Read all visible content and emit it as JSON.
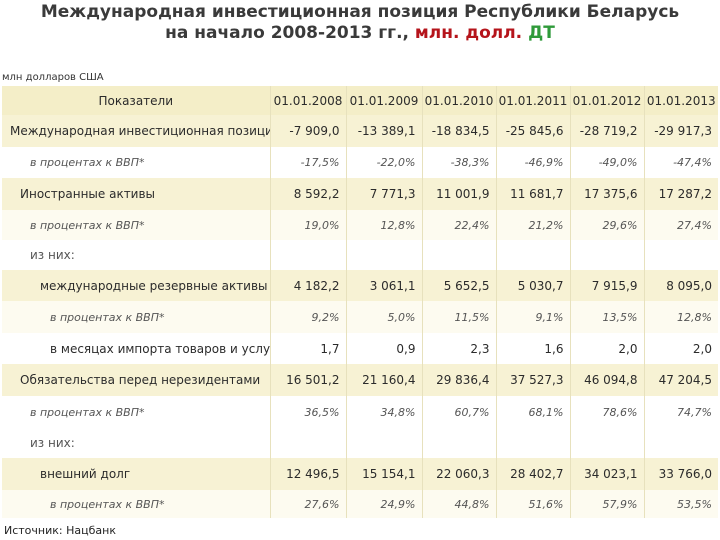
{
  "title": {
    "line1": "Международная инвестиционная позиция Республики Беларусь",
    "line2_main": "на начало 2008-2013 гг.,",
    "line2_units": "млн. долл.",
    "line2_code": "ДТ"
  },
  "units_note": "млн долларов США",
  "table": {
    "header": {
      "indicator": "Показатели",
      "dates": [
        "01.01.2008",
        "01.01.2009",
        "01.01.2010",
        "01.01.2011",
        "01.01.2012",
        "01.01.2013"
      ]
    },
    "rows": [
      {
        "label": "Международная инвестиционная позиция",
        "values": [
          "-7 909,0",
          "-13 389,1",
          "-18 834,5",
          "-25 845,6",
          "-28 719,2",
          "-29 917,3"
        ]
      },
      {
        "label": "в процентах к ВВП*",
        "values": [
          "-17,5%",
          "-22,0%",
          "-38,3%",
          "-46,9%",
          "-49,0%",
          "-47,4%"
        ]
      },
      {
        "label": "Иностранные активы",
        "values": [
          "8 592,2",
          "7 771,3",
          "11 001,9",
          "11 681,7",
          "17 375,6",
          "17 287,2"
        ]
      },
      {
        "label": "в процентах к ВВП*",
        "values": [
          "19,0%",
          "12,8%",
          "22,4%",
          "21,2%",
          "29,6%",
          "27,4%"
        ]
      },
      {
        "label": "из них:",
        "values": [
          "",
          "",
          "",
          "",
          "",
          ""
        ]
      },
      {
        "label": "международные резервные активы",
        "values": [
          "4 182,2",
          "3 061,1",
          "5 652,5",
          "5 030,7",
          "7 915,9",
          "8 095,0"
        ]
      },
      {
        "label": "в процентах к ВВП*",
        "values": [
          "9,2%",
          "5,0%",
          "11,5%",
          "9,1%",
          "13,5%",
          "12,8%"
        ]
      },
      {
        "label": "в месяцах импорта товаров и услуг**",
        "values": [
          "1,7",
          "0,9",
          "2,3",
          "1,6",
          "2,0",
          "2,0"
        ]
      },
      {
        "label": "Обязательства перед нерезидентами",
        "values": [
          "16 501,2",
          "21 160,4",
          "29 836,4",
          "37 527,3",
          "46 094,8",
          "47 204,5"
        ]
      },
      {
        "label": "в процентах к ВВП*",
        "values": [
          "36,5%",
          "34,8%",
          "60,7%",
          "68,1%",
          "78,6%",
          "74,7%"
        ]
      },
      {
        "label": "из них:",
        "values": [
          "",
          "",
          "",
          "",
          "",
          ""
        ]
      },
      {
        "label": "внешний долг",
        "values": [
          "12 496,5",
          "15 154,1",
          "22 060,3",
          "28 402,7",
          "34 023,1",
          "33 766,0"
        ]
      },
      {
        "label": "в процентах к ВВП*",
        "values": [
          "27,6%",
          "24,9%",
          "44,8%",
          "51,6%",
          "57,9%",
          "53,5%"
        ]
      }
    ]
  },
  "source": "Источник: Нацбанк"
}
